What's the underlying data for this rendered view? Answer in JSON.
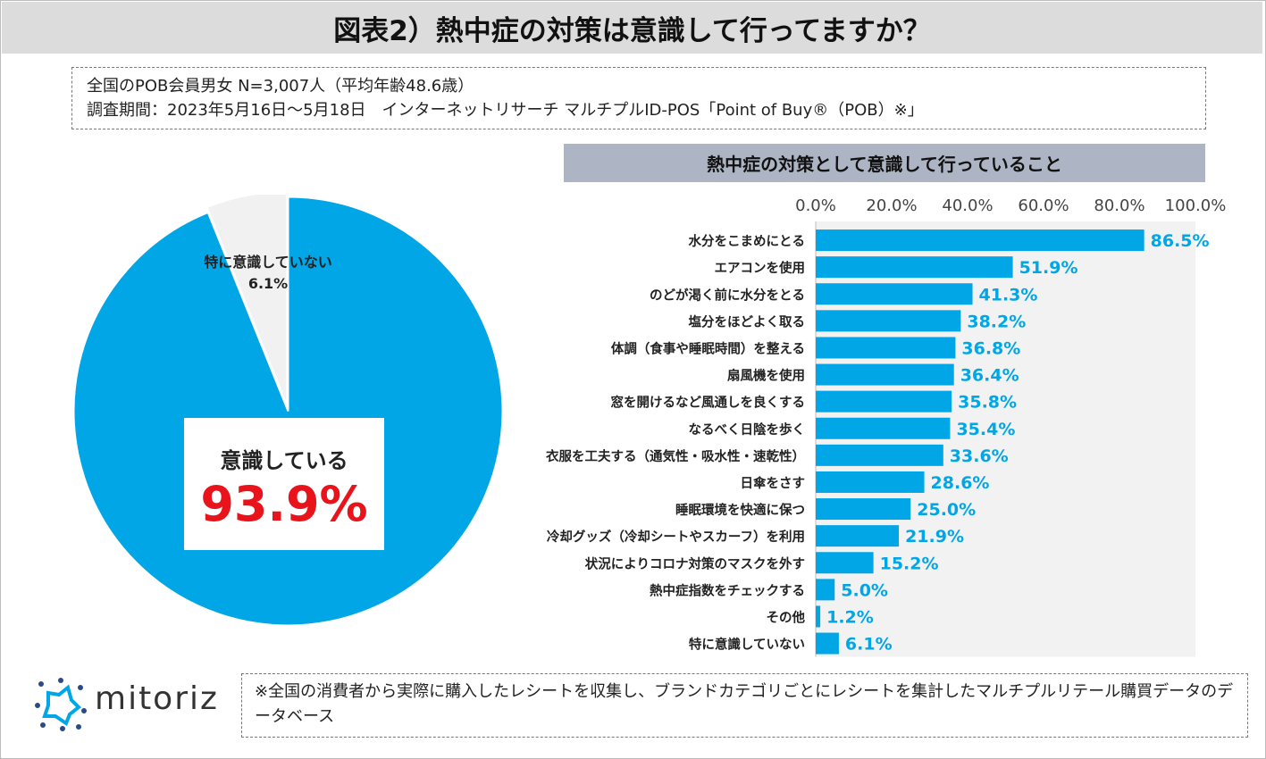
{
  "title": "図表2）熱中症の対策は意識して行ってますか？",
  "survey": {
    "line1": "全国のPOB会員男女 N=3,007人（平均年齢48.6歳）",
    "line2": "調査期間：2023年5月16日～5月18日　インターネットリサーチ マルチプルID-POS「Point of Buy®（POB）※」"
  },
  "pie": {
    "aware_label": "意識している",
    "aware_value": "93.9%",
    "not_aware_label": "特に意識していない",
    "not_aware_value": "6.1%"
  },
  "bar_title": "熱中症の対策として意識して行っていること",
  "footer_note": "※全国の消費者から実際に購入したレシートを収集し、ブランドカテゴリごとにレシートを集計したマルチプルリテール購買データのデータベース",
  "logo": {
    "text": "mitoriz"
  },
  "colors": {
    "bar": "#00a6e6",
    "pie_main": "#00a6e6",
    "pie_other": "#f1f1f1",
    "accent_red": "#e8131b",
    "plot_bg": "#f2f2f2",
    "title_bg": "#dcdcdc",
    "bar_title_bg": "#adb4c3"
  },
  "chart_data": [
    {
      "type": "pie",
      "title": "",
      "labels": [
        "意識している",
        "特に意識していない"
      ],
      "values": [
        93.9,
        6.1
      ],
      "units": "%"
    },
    {
      "type": "bar",
      "orientation": "horizontal",
      "title": "熱中症の対策として意識して行っていること",
      "categories": [
        "水分をこまめにとる",
        "エアコンを使用",
        "のどが渇く前に水分をとる",
        "塩分をほどよく取る",
        "体調（食事や睡眠時間）を整える",
        "扇風機を使用",
        "窓を開けるなど風通しを良くする",
        "なるべく日陰を歩く",
        "衣服を工夫する（通気性・吸水性・速乾性）",
        "日傘をさす",
        "睡眠環境を快適に保つ",
        "冷却グッズ（冷却シートやスカーフ）を利用",
        "状況によりコロナ対策のマスクを外す",
        "熱中症指数をチェックする",
        "その他",
        "特に意識していない"
      ],
      "values": [
        86.5,
        51.9,
        41.3,
        38.2,
        36.8,
        36.4,
        35.8,
        35.4,
        33.6,
        28.6,
        25.0,
        21.9,
        15.2,
        5.0,
        1.2,
        6.1
      ],
      "value_labels": [
        "86.5%",
        "51.9%",
        "41.3%",
        "38.2%",
        "36.8%",
        "36.4%",
        "35.8%",
        "35.4%",
        "33.6%",
        "28.6%",
        "25.0%",
        "21.9%",
        "15.2%",
        "5.0%",
        "1.2%",
        "6.1%"
      ],
      "xlim": [
        0,
        100
      ],
      "xticks": [
        "0.0%",
        "20.0%",
        "40.0%",
        "60.0%",
        "80.0%",
        "100.0%"
      ],
      "grid": false
    }
  ]
}
